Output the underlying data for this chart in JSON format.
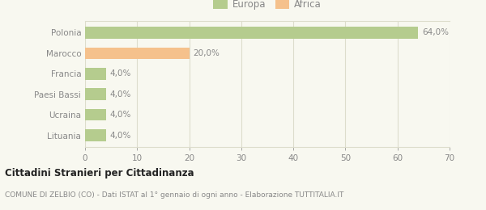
{
  "categories": [
    "Lituania",
    "Ucraina",
    "Paesi Bassi",
    "Francia",
    "Marocco",
    "Polonia"
  ],
  "values": [
    4.0,
    4.0,
    4.0,
    4.0,
    20.0,
    64.0
  ],
  "colors": [
    "#b5cc8e",
    "#b5cc8e",
    "#b5cc8e",
    "#b5cc8e",
    "#f5c18c",
    "#b5cc8e"
  ],
  "legend_labels": [
    "Europa",
    "Africa"
  ],
  "legend_colors": [
    "#b5cc8e",
    "#f5c18c"
  ],
  "bar_labels": [
    "4,0%",
    "4,0%",
    "4,0%",
    "4,0%",
    "20,0%",
    "64,0%"
  ],
  "xlim": [
    0,
    70
  ],
  "xticks": [
    0,
    10,
    20,
    30,
    40,
    50,
    60,
    70
  ],
  "title": "Cittadini Stranieri per Cittadinanza",
  "subtitle": "COMUNE DI ZELBIO (CO) - Dati ISTAT al 1° gennaio di ogni anno - Elaborazione TUTTITALIA.IT",
  "background_color": "#f8f8f0",
  "grid_color": "#ddddcc",
  "text_color": "#888888",
  "title_color": "#222222",
  "subtitle_color": "#888888"
}
